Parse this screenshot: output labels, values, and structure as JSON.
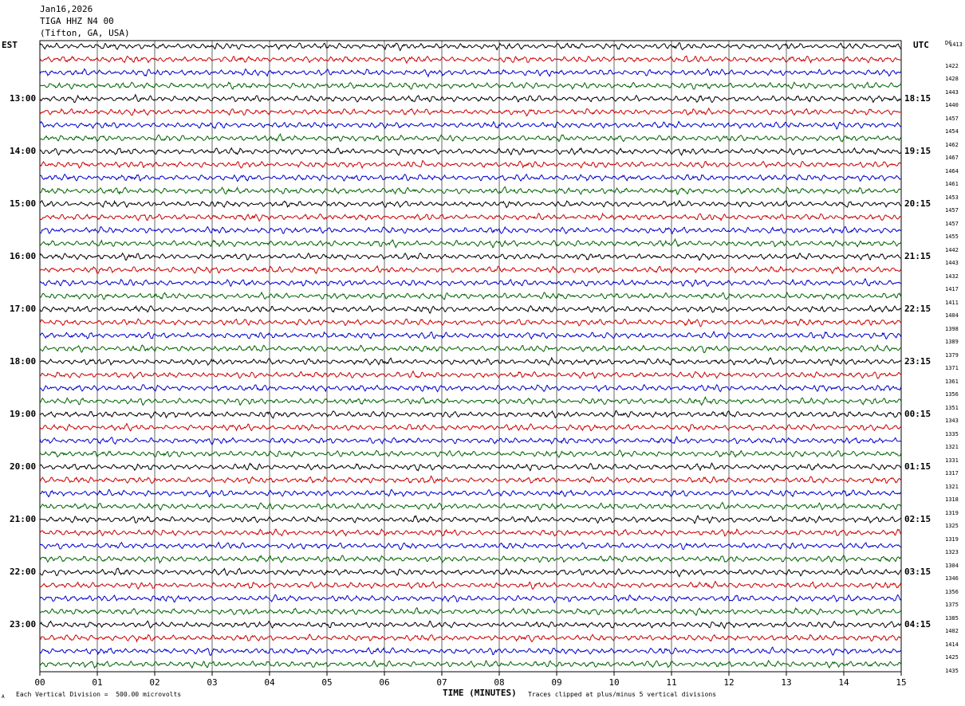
{
  "header": {
    "date": "Jan16,2026",
    "station": "TIGA HHZ N4 00",
    "location": "(Tifton, GA, USA)"
  },
  "left_zone_label": "EST",
  "right_zone_label": "UTC",
  "dc_header": "DC",
  "footer": {
    "scale_note": "Each Vertical Division =  500.00 microvolts",
    "clip_note": "Traces clipped at plus/minus 5 vertical divisions",
    "corner_mark": "A"
  },
  "colors": {
    "trace_cycle": [
      "#000000",
      "#cc0000",
      "#0000cc",
      "#006400"
    ],
    "grid": "#000000"
  },
  "chart_data": {
    "type": "line",
    "title": "TIGA HHZ N4 00",
    "xlabel": "TIME (MINUTES)",
    "x_ticks": [
      "00",
      "01",
      "02",
      "03",
      "04",
      "05",
      "06",
      "07",
      "08",
      "09",
      "10",
      "11",
      "12",
      "13",
      "14",
      "15"
    ],
    "xlim": [
      0,
      15
    ],
    "rows_per_hour": 4,
    "row_count": 48,
    "est_hour_labels": [
      "13:00",
      "14:00",
      "15:00",
      "16:00",
      "17:00",
      "18:00",
      "19:00",
      "20:00",
      "21:00",
      "22:00",
      "23:00"
    ],
    "utc_hour_labels": [
      "18:15",
      "19:15",
      "20:15",
      "21:15",
      "22:15",
      "23:15",
      "00:15",
      "01:15",
      "02:15",
      "03:15",
      "04:15"
    ],
    "dc_offsets": [
      1413,
      1422,
      1428,
      1443,
      1440,
      1457,
      1454,
      1462,
      1467,
      1464,
      1461,
      1453,
      1457,
      1457,
      1455,
      1442,
      1443,
      1432,
      1417,
      1411,
      1404,
      1398,
      1389,
      1379,
      1371,
      1361,
      1356,
      1351,
      1343,
      1335,
      1321,
      1331,
      1317,
      1321,
      1318,
      1319,
      1325,
      1319,
      1323,
      1304,
      1346,
      1356,
      1375,
      1385,
      1402,
      1414,
      1425,
      1435
    ]
  }
}
